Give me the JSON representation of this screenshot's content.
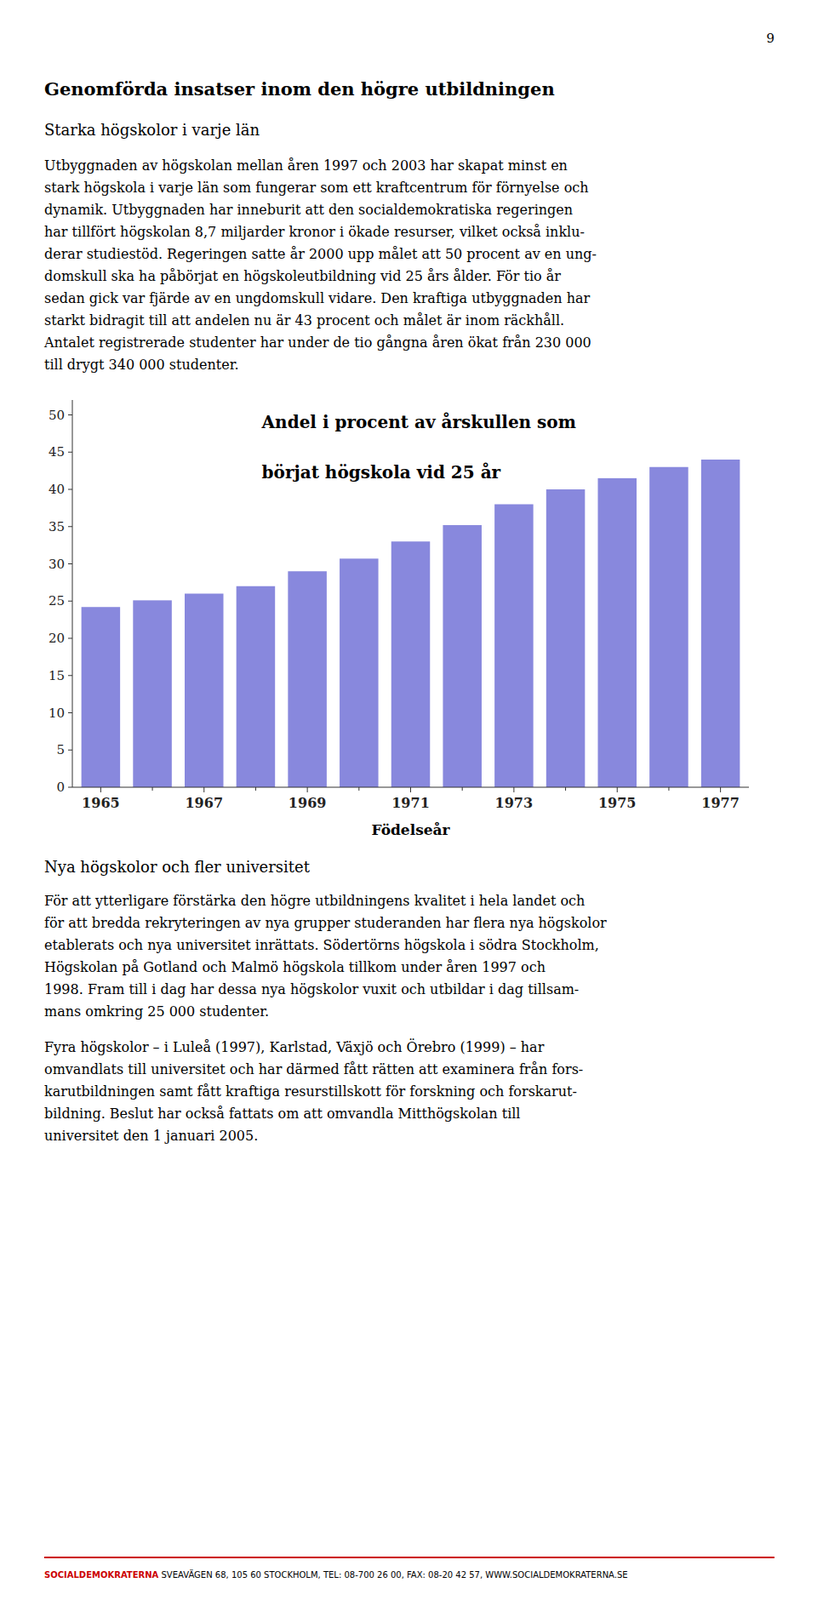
{
  "page_number": "9",
  "heading1": "Genomförda insatser inom den högre utbildningen",
  "heading2": "Starka högskolor i varje län",
  "para1_lines": [
    "Utbyggnaden av högskolan mellan åren 1997 och 2003 har skapat minst en",
    "stark högskola i varje län som fungerar som ett kraftcentrum för förnyelse och",
    "dynamik. Utbyggnaden har inneburit att den socialdemokratiska regeringen",
    "har tillfört högskolan 8,7 miljarder kronor i ökade resurser, vilket också inklu-",
    "derar studiestöd. Regeringen satte år 2000 upp målet att 50 procent av en ung-",
    "domskull ska ha påbörjat en högskoleutbildning vid 25 års ålder. För tio år",
    "sedan gick var fjärde av en ungdomskull vidare. Den kraftiga utbyggnaden har",
    "starkt bidragit till att andelen nu är 43 procent och målet är inom räckhåll.",
    "Antalet registrerade studenter har under de tio gångna åren ökat från 230 000",
    "till drygt 340 000 studenter."
  ],
  "chart_data": {
    "type": "bar",
    "title": [
      "Andel i procent av årskullen som",
      "börjat högskola vid 25 år"
    ],
    "xlabel": "Födelseår",
    "categories": [
      "1965",
      null,
      "1967",
      null,
      "1969",
      null,
      "1971",
      null,
      "1973",
      null,
      "1975",
      null,
      "1977"
    ],
    "values": [
      24.2,
      25.1,
      26.0,
      27.0,
      29.0,
      30.7,
      33.0,
      35.2,
      38.0,
      40.0,
      41.5,
      43.0,
      44.0
    ],
    "color": "#8888dd",
    "ylim": [
      0,
      52
    ],
    "yticks": [
      0,
      5,
      10,
      15,
      20,
      25,
      30,
      35,
      40,
      45,
      50
    ],
    "grid": false
  },
  "heading3": "Nya högskolor och fler universitet",
  "para2_lines": [
    "För att ytterligare förstärka den högre utbildningens kvalitet i hela landet och",
    "för att bredda rekryteringen av nya grupper studeranden har flera nya högskolor",
    "etablerats och nya universitet inrättats. Södertörns högskola i södra Stockholm,",
    "Högskolan på Gotland och Malmö högskola tillkom under åren 1997 och",
    "1998. Fram till i dag har dessa nya högskolor vuxit och utbildar i dag tillsam-",
    "mans omkring 25 000 studenter."
  ],
  "para3_lines": [
    "Fyra högskolor – i Luleå (1997), Karlstad, Växjö och Örebro (1999) – har",
    "omvandlats till universitet och har därmed fått rätten att examinera från fors-",
    "karutbildningen samt fått kraftiga resurstillskott för forskning och forskarut-",
    "bildning. Beslut har också fattats om att omvandla Mitthögskolan till",
    "universitet den 1 januari 2005."
  ],
  "footer_brand": "SOCIALDEMOKRATERNA",
  "footer_rest": " SVEAVÄGEN 68, 105 60 STOCKHOLM, TEL: 08-700 26 00, FAX: 08-20 42 57, WWW.SOCIALDEMOKRATERNA.SE",
  "footer_color": "#cc0000"
}
